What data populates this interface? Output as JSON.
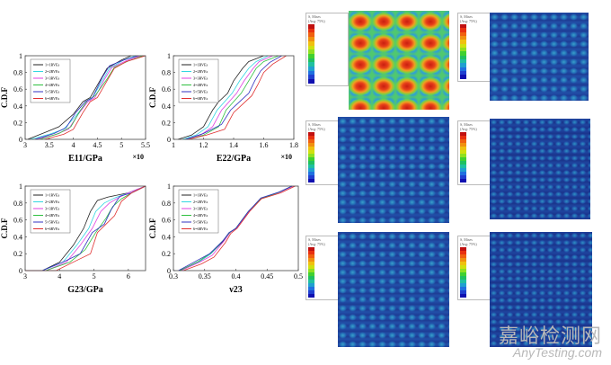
{
  "series_colors": [
    "#222222",
    "#33d6e0",
    "#e040e0",
    "#30c040",
    "#3030c0",
    "#e03030"
  ],
  "legend_labels": [
    "1=1RVEs",
    "2=2RVEs",
    "3=3RVEs",
    "4=4RVEs",
    "5=5RVEs",
    "6=6RVEs"
  ],
  "chart_data": [
    {
      "type": "line",
      "title": "",
      "xlabel": "E11/GPa",
      "xlabel_main": "E",
      "xlabel_sub": "11",
      "xlabel_unit": "/GPa",
      "multiplier": "×10",
      "ylabel": "C.D.F",
      "xlim": [
        3,
        5.5
      ],
      "ylim": [
        0,
        1
      ],
      "xticks": [
        "3",
        "3.5",
        "4",
        "4.5",
        "5",
        "5.5"
      ],
      "yticks": [
        "0",
        "0.2",
        "0.4",
        "0.6",
        "0.8",
        "1"
      ],
      "series": [
        {
          "name": "1=1RVEs",
          "x": [
            3.05,
            3.4,
            3.7,
            4.0,
            4.2,
            4.35,
            4.55,
            4.7,
            5.0,
            5.2
          ],
          "y": [
            0,
            0.08,
            0.15,
            0.3,
            0.45,
            0.5,
            0.7,
            0.85,
            0.95,
            1
          ]
        },
        {
          "name": "2=2RVEs",
          "x": [
            3.1,
            3.5,
            3.8,
            4.05,
            4.25,
            4.4,
            4.6,
            4.75,
            5.05,
            5.3
          ],
          "y": [
            0,
            0.06,
            0.12,
            0.28,
            0.42,
            0.5,
            0.7,
            0.85,
            0.95,
            1
          ]
        },
        {
          "name": "3=3RVEs",
          "x": [
            3.2,
            3.6,
            3.9,
            4.1,
            4.3,
            4.45,
            4.65,
            4.8,
            5.1,
            5.4
          ],
          "y": [
            0,
            0.05,
            0.12,
            0.3,
            0.45,
            0.5,
            0.72,
            0.86,
            0.94,
            1
          ]
        },
        {
          "name": "4=4RVEs",
          "x": [
            3.3,
            3.7,
            3.95,
            4.15,
            4.3,
            4.45,
            4.7,
            4.85,
            5.15,
            5.45
          ],
          "y": [
            0,
            0.07,
            0.15,
            0.35,
            0.47,
            0.52,
            0.72,
            0.86,
            0.94,
            1
          ]
        },
        {
          "name": "5=5RVEs",
          "x": [
            3.2,
            3.6,
            3.85,
            4.05,
            4.25,
            4.4,
            4.6,
            4.75,
            5.05,
            5.35
          ],
          "y": [
            0,
            0.07,
            0.14,
            0.32,
            0.45,
            0.5,
            0.74,
            0.88,
            0.95,
            1
          ]
        },
        {
          "name": "6=6RVEs",
          "x": [
            3.4,
            3.8,
            4.0,
            4.2,
            4.35,
            4.5,
            4.7,
            4.85,
            5.1,
            5.5
          ],
          "y": [
            0,
            0.06,
            0.12,
            0.32,
            0.45,
            0.5,
            0.7,
            0.85,
            0.93,
            1
          ]
        }
      ]
    },
    {
      "type": "line",
      "title": "",
      "xlabel": "E22/GPa",
      "xlabel_main": "E",
      "xlabel_sub": "22",
      "xlabel_unit": "/GPa",
      "multiplier": "×10",
      "ylabel": "C.D.F",
      "xlim": [
        1,
        1.8
      ],
      "ylim": [
        0,
        1
      ],
      "xticks": [
        "1",
        "1.2",
        "1.4",
        "1.6",
        "1.8"
      ],
      "yticks": [
        "0",
        "0.2",
        "0.4",
        "0.6",
        "0.8",
        "1"
      ],
      "series": [
        {
          "name": "1=1RVEs",
          "x": [
            1.03,
            1.12,
            1.2,
            1.26,
            1.3,
            1.36,
            1.4,
            1.46,
            1.5,
            1.6
          ],
          "y": [
            0,
            0.05,
            0.15,
            0.35,
            0.45,
            0.55,
            0.7,
            0.85,
            0.93,
            1
          ]
        },
        {
          "name": "2=2RVEs",
          "x": [
            1.06,
            1.15,
            1.23,
            1.29,
            1.34,
            1.39,
            1.44,
            1.5,
            1.55,
            1.63
          ],
          "y": [
            0,
            0.05,
            0.15,
            0.35,
            0.45,
            0.55,
            0.7,
            0.85,
            0.93,
            1
          ]
        },
        {
          "name": "3=3RVEs",
          "x": [
            1.08,
            1.18,
            1.26,
            1.32,
            1.37,
            1.42,
            1.47,
            1.53,
            1.57,
            1.66
          ],
          "y": [
            0,
            0.05,
            0.15,
            0.35,
            0.45,
            0.55,
            0.7,
            0.85,
            0.93,
            1
          ]
        },
        {
          "name": "4=4RVEs",
          "x": [
            1.1,
            1.2,
            1.3,
            1.35,
            1.4,
            1.45,
            1.5,
            1.55,
            1.6,
            1.7
          ],
          "y": [
            0,
            0.05,
            0.15,
            0.35,
            0.45,
            0.55,
            0.7,
            0.85,
            0.93,
            1
          ]
        },
        {
          "name": "5=5RVEs",
          "x": [
            1.08,
            1.2,
            1.32,
            1.38,
            1.44,
            1.5,
            1.54,
            1.58,
            1.64,
            1.72
          ],
          "y": [
            0,
            0.07,
            0.18,
            0.35,
            0.45,
            0.55,
            0.7,
            0.82,
            0.92,
            1
          ]
        },
        {
          "name": "6=6RVEs",
          "x": [
            1.1,
            1.22,
            1.34,
            1.4,
            1.46,
            1.52,
            1.56,
            1.6,
            1.66,
            1.75
          ],
          "y": [
            0,
            0.05,
            0.12,
            0.32,
            0.42,
            0.52,
            0.65,
            0.8,
            0.9,
            1
          ]
        }
      ]
    },
    {
      "type": "line",
      "title": "",
      "xlabel": "G23/GPa",
      "xlabel_main": "G",
      "xlabel_sub": "23",
      "xlabel_unit": "/GPa",
      "multiplier": "",
      "ylabel": "C.D.F",
      "xlim": [
        3,
        6.5
      ],
      "ylim": [
        0,
        1
      ],
      "xticks": [
        "3",
        "4",
        "5",
        "6"
      ],
      "yticks": [
        "0",
        "0.2",
        "0.4",
        "0.6",
        "0.8",
        "1"
      ],
      "series": [
        {
          "name": "1=1RVEs",
          "x": [
            3.0,
            3.5,
            4.0,
            4.4,
            4.7,
            4.9,
            5.1,
            5.4,
            6.0,
            6.5
          ],
          "y": [
            0,
            0,
            0.1,
            0.3,
            0.5,
            0.7,
            0.83,
            0.87,
            0.92,
            1
          ]
        },
        {
          "name": "2=2RVEs",
          "x": [
            3.0,
            3.5,
            4.1,
            4.5,
            4.85,
            5.05,
            5.3,
            5.6,
            6.0,
            6.5
          ],
          "y": [
            0,
            0,
            0.1,
            0.3,
            0.5,
            0.7,
            0.8,
            0.86,
            0.92,
            1
          ]
        },
        {
          "name": "3=3RVEs",
          "x": [
            3.0,
            3.6,
            4.2,
            4.6,
            4.95,
            5.2,
            5.45,
            5.7,
            6.0,
            6.5
          ],
          "y": [
            0,
            0,
            0.1,
            0.3,
            0.5,
            0.7,
            0.8,
            0.86,
            0.92,
            1
          ]
        },
        {
          "name": "4=4RVEs",
          "x": [
            3.0,
            3.6,
            4.3,
            4.75,
            5.05,
            5.35,
            5.55,
            5.8,
            6.1,
            6.5
          ],
          "y": [
            0,
            0,
            0.1,
            0.25,
            0.45,
            0.62,
            0.76,
            0.85,
            0.92,
            1
          ]
        },
        {
          "name": "5=5RVEs",
          "x": [
            3.0,
            3.5,
            4.2,
            4.6,
            4.95,
            5.3,
            5.5,
            5.75,
            6.1,
            6.5
          ],
          "y": [
            0,
            0,
            0.12,
            0.2,
            0.45,
            0.55,
            0.72,
            0.88,
            0.92,
            1
          ]
        },
        {
          "name": "6=6RVEs",
          "x": [
            3.0,
            3.9,
            4.5,
            4.9,
            5.1,
            5.35,
            5.6,
            5.8,
            6.1,
            6.5
          ],
          "y": [
            0,
            0,
            0.12,
            0.2,
            0.45,
            0.55,
            0.65,
            0.82,
            0.92,
            1
          ]
        }
      ]
    },
    {
      "type": "line",
      "title": "",
      "xlabel": "ν23",
      "xlabel_main": "ν",
      "xlabel_sub": "23",
      "xlabel_unit": "",
      "multiplier": "",
      "ylabel": "C.D.F",
      "xlim": [
        0.3,
        0.5
      ],
      "ylim": [
        0,
        1
      ],
      "xticks": [
        "0.3",
        "0.35",
        "0.4",
        "0.45",
        "0.5"
      ],
      "yticks": [
        "0",
        "0.2",
        "0.4",
        "0.6",
        "0.8",
        "1"
      ],
      "series": [
        {
          "name": "1=1RVEs",
          "x": [
            0.31,
            0.34,
            0.36,
            0.38,
            0.39,
            0.4,
            0.42,
            0.44,
            0.47,
            0.49
          ],
          "y": [
            0,
            0.1,
            0.2,
            0.35,
            0.45,
            0.5,
            0.7,
            0.85,
            0.93,
            1
          ]
        },
        {
          "name": "2=2RVEs",
          "x": [
            0.31,
            0.34,
            0.36,
            0.38,
            0.39,
            0.4,
            0.42,
            0.44,
            0.47,
            0.49
          ],
          "y": [
            0,
            0.1,
            0.2,
            0.36,
            0.45,
            0.5,
            0.7,
            0.85,
            0.93,
            1
          ]
        },
        {
          "name": "3=3RVEs",
          "x": [
            0.312,
            0.342,
            0.362,
            0.381,
            0.391,
            0.401,
            0.421,
            0.44,
            0.471,
            0.492
          ],
          "y": [
            0,
            0.1,
            0.18,
            0.35,
            0.45,
            0.5,
            0.7,
            0.85,
            0.93,
            1
          ]
        },
        {
          "name": "4=4RVEs",
          "x": [
            0.31,
            0.34,
            0.36,
            0.38,
            0.39,
            0.4,
            0.42,
            0.44,
            0.47,
            0.49
          ],
          "y": [
            0,
            0.11,
            0.21,
            0.36,
            0.45,
            0.5,
            0.7,
            0.85,
            0.93,
            1
          ]
        },
        {
          "name": "5=5RVEs",
          "x": [
            0.308,
            0.338,
            0.358,
            0.379,
            0.389,
            0.4,
            0.42,
            0.44,
            0.469,
            0.49
          ],
          "y": [
            0,
            0.12,
            0.2,
            0.35,
            0.45,
            0.5,
            0.7,
            0.86,
            0.93,
            1
          ]
        },
        {
          "name": "6=6RVEs",
          "x": [
            0.316,
            0.345,
            0.365,
            0.383,
            0.392,
            0.402,
            0.422,
            0.441,
            0.472,
            0.495
          ],
          "y": [
            0,
            0.08,
            0.16,
            0.33,
            0.44,
            0.5,
            0.7,
            0.85,
            0.92,
            1
          ]
        }
      ]
    }
  ],
  "fe_legend": {
    "title": "S, Mises",
    "subtitle": "(Avg: 75%)"
  },
  "fe_legend_colors": [
    "#c01010",
    "#e83010",
    "#f06010",
    "#f09010",
    "#f0c010",
    "#d0e010",
    "#90e020",
    "#40d030",
    "#20c060",
    "#20c0a0",
    "#20a0d0",
    "#2070e0",
    "#2040d0",
    "#1010b0"
  ],
  "watermark": {
    "cn": "嘉峪检测网",
    "en": "AnyTesting.com"
  }
}
